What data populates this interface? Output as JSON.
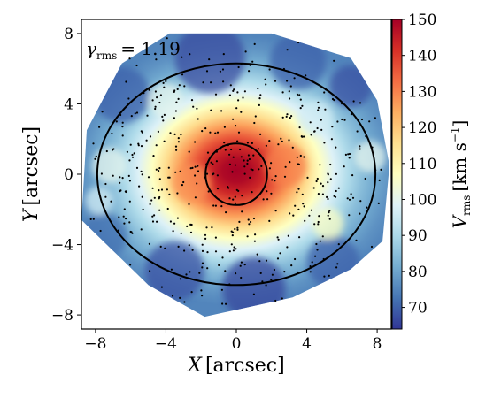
{
  "chart_data": {
    "type": "heatmap",
    "title": "",
    "annotation": {
      "symbol": "γ",
      "subscript": "rms",
      "text": "= 1.19"
    },
    "xlabel": {
      "var": "X",
      "unit": "[arcsec]"
    },
    "ylabel": {
      "var": "Y",
      "unit": "[arcsec]"
    },
    "xlim": [
      -8.8,
      8.8
    ],
    "ylim": [
      -8.8,
      8.8
    ],
    "xticks": [
      "−8",
      "−4",
      "0",
      "4",
      "8"
    ],
    "xtick_values": [
      -8,
      -4,
      0,
      4,
      8
    ],
    "yticks": [
      "−8",
      "−4",
      "0",
      "4",
      "8"
    ],
    "ytick_values": [
      -8,
      -4,
      0,
      4,
      8
    ],
    "colorbar": {
      "label": {
        "var": "V",
        "subscript": "rms",
        "unit": "[km s",
        "exp": "−1",
        "close": "]"
      },
      "range": [
        64,
        150
      ],
      "ticks": [
        "70",
        "80",
        "90",
        "100",
        "110",
        "120",
        "130",
        "140",
        "150"
      ],
      "tick_values": [
        70,
        80,
        90,
        100,
        110,
        120,
        130,
        140,
        150
      ],
      "colormap": [
        "#313695",
        "#4575b4",
        "#74add1",
        "#abd9e9",
        "#e0f3f8",
        "#ffffbf",
        "#fee090",
        "#fdae61",
        "#f46d43",
        "#d73027",
        "#a50026"
      ]
    },
    "field": {
      "center": [
        0.0,
        0.2
      ],
      "peak_value": 150,
      "outer_value": 72,
      "core_radius": 2.5,
      "scale_radius": 5.5
    },
    "boundary_polygon": [
      [
        -3.8,
        8.0
      ],
      [
        2.0,
        8.0
      ],
      [
        6.5,
        6.6
      ],
      [
        8.0,
        4.2
      ],
      [
        8.7,
        0.5
      ],
      [
        8.3,
        -3.8
      ],
      [
        6.5,
        -5.4
      ],
      [
        3.2,
        -7.0
      ],
      [
        -1.8,
        -8.1
      ],
      [
        -5.0,
        -6.3
      ],
      [
        -8.8,
        -2.6
      ],
      [
        -8.5,
        2.5
      ],
      [
        -6.5,
        6.3
      ]
    ],
    "ellipses": [
      {
        "name": "inner",
        "cx": 0,
        "cy": 0,
        "rx": 1.75,
        "ry": 1.75
      },
      {
        "name": "outer",
        "cx": 0,
        "cy": 0,
        "rx": 7.9,
        "ry": 6.3
      }
    ],
    "bins": {
      "count": 520,
      "seed": 7
    }
  }
}
